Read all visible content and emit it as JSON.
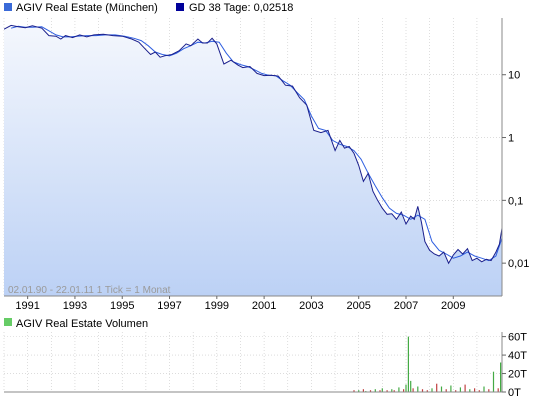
{
  "colors": {
    "background": "#ffffff",
    "price_line": "#1a1f8c",
    "average_line": "#2f5fe0",
    "area_top": "#f4f7fd",
    "area_bottom": "#bcd1f5",
    "volume_bar_green": "#44aa44",
    "volume_bar_red": "#c04040",
    "legend_price_swatch": "#3a6ad8",
    "legend_average_swatch": "#00009a",
    "legend_volume_swatch": "#66cc66",
    "grid": "#c8c8c8",
    "axis_text": "#000000",
    "watermark_text": "#9a9a9a"
  },
  "legend": {
    "price_series": "AGIV Real Estate (München)",
    "average_series": "GD 38 Tage: 0,02518",
    "volume_series": "AGIV Real Estate Volumen"
  },
  "watermark": "02.01.90 - 22.01.11    1 Tick = 1 Monat",
  "chart_data": [
    {
      "type": "line",
      "y_scale": "log",
      "ylim": [
        0.003,
        80
      ],
      "xlim": [
        1990.0,
        2011.06
      ],
      "y_ticks": [
        {
          "value": 10,
          "label": "10"
        },
        {
          "value": 1,
          "label": "1"
        },
        {
          "value": 0.1,
          "label": "0,1"
        },
        {
          "value": 0.01,
          "label": "0,01"
        }
      ],
      "x_ticks": [
        {
          "value": 1991,
          "label": "1991"
        },
        {
          "value": 1993,
          "label": "1993"
        },
        {
          "value": 1995,
          "label": "1995"
        },
        {
          "value": 1997,
          "label": "1997"
        },
        {
          "value": 1999,
          "label": "1999"
        },
        {
          "value": 2001,
          "label": "2001"
        },
        {
          "value": 2003,
          "label": "2003"
        },
        {
          "value": 2005,
          "label": "2005"
        },
        {
          "value": 2007,
          "label": "2007"
        },
        {
          "value": 2009,
          "label": "2009"
        }
      ],
      "minor_x_ticks": [
        1990,
        1992,
        1994,
        1996,
        1998,
        2000,
        2002,
        2004,
        2006,
        2008,
        2010
      ],
      "series": [
        {
          "name": "AGIV Real Estate (München)",
          "x": [
            1990.0,
            1990.3,
            1990.6,
            1990.9,
            1991.2,
            1991.6,
            1991.9,
            1992.2,
            1992.4,
            1992.6,
            1992.9,
            1993.2,
            1993.5,
            1993.8,
            1994.2,
            1994.6,
            1995.0,
            1995.4,
            1995.7,
            1996.0,
            1996.2,
            1996.4,
            1996.6,
            1996.8,
            1997.1,
            1997.4,
            1997.7,
            1997.9,
            1998.2,
            1998.4,
            1998.6,
            1998.8,
            1999.0,
            1999.3,
            1999.6,
            1999.9,
            2000.1,
            2000.4,
            2000.7,
            2001.0,
            2001.3,
            2001.6,
            2001.9,
            2002.2,
            2002.5,
            2002.8,
            2003.1,
            2003.4,
            2003.7,
            2004.0,
            2004.2,
            2004.4,
            2004.6,
            2004.8,
            2005.0,
            2005.2,
            2005.4,
            2005.6,
            2005.8,
            2006.0,
            2006.2,
            2006.4,
            2006.6,
            2006.8,
            2007.0,
            2007.2,
            2007.35,
            2007.5,
            2007.65,
            2007.8,
            2008.0,
            2008.2,
            2008.4,
            2008.6,
            2008.8,
            2009.0,
            2009.2,
            2009.4,
            2009.6,
            2009.8,
            2010.0,
            2010.2,
            2010.4,
            2010.6,
            2010.8,
            2010.95,
            2011.06
          ],
          "values": [
            53,
            61,
            58,
            56,
            60,
            55,
            42,
            41,
            37,
            42,
            39,
            43,
            40,
            43,
            44,
            42,
            41,
            37,
            33,
            25,
            21,
            23,
            19,
            20,
            21,
            24,
            31,
            29,
            37,
            32,
            32,
            38,
            31,
            14.8,
            17,
            14.2,
            13,
            13.5,
            10.5,
            9.7,
            9.8,
            9.5,
            6.8,
            6.6,
            4.3,
            3.3,
            1.3,
            1.2,
            1.3,
            0.62,
            0.9,
            0.68,
            0.72,
            0.56,
            0.36,
            0.2,
            0.27,
            0.14,
            0.1,
            0.075,
            0.06,
            0.061,
            0.05,
            0.065,
            0.042,
            0.056,
            0.05,
            0.08,
            0.045,
            0.022,
            0.016,
            0.014,
            0.013,
            0.015,
            0.01,
            0.0135,
            0.0165,
            0.014,
            0.017,
            0.011,
            0.012,
            0.0105,
            0.0115,
            0.011,
            0.015,
            0.02,
            0.036
          ]
        },
        {
          "name": "GD 38 Tage: 0,02518",
          "x": [
            1990.3,
            1990.6,
            1990.9,
            1991.2,
            1991.6,
            1991.9,
            1992.2,
            1992.5,
            1992.8,
            1993.1,
            1993.5,
            1993.9,
            1994.3,
            1994.7,
            1995.1,
            1995.5,
            1995.8,
            1996.1,
            1996.4,
            1996.7,
            1997.0,
            1997.3,
            1997.6,
            1997.9,
            1998.2,
            1998.5,
            1998.8,
            1999.1,
            1999.4,
            1999.7,
            2000.0,
            2000.3,
            2000.6,
            2000.9,
            2001.2,
            2001.5,
            2001.8,
            2002.1,
            2002.4,
            2002.7,
            2003.0,
            2003.3,
            2003.6,
            2003.9,
            2004.2,
            2004.5,
            2004.8,
            2005.1,
            2005.4,
            2005.7,
            2006.0,
            2006.3,
            2006.6,
            2006.9,
            2007.2,
            2007.5,
            2007.8,
            2008.1,
            2008.4,
            2008.7,
            2009.0,
            2009.3,
            2009.6,
            2009.9,
            2010.2,
            2010.5,
            2010.8,
            2011.06
          ],
          "values": [
            55,
            59,
            57,
            57,
            58,
            50,
            43,
            40,
            40,
            41,
            42,
            42,
            43,
            43,
            41,
            38,
            35,
            29,
            23,
            21,
            20,
            22,
            26,
            29,
            33,
            32,
            34,
            33,
            22,
            16,
            14.5,
            13.5,
            12,
            10.5,
            9.8,
            9.6,
            8,
            6.8,
            5.2,
            4,
            2.2,
            1.4,
            1.3,
            0.9,
            0.78,
            0.72,
            0.62,
            0.45,
            0.27,
            0.17,
            0.11,
            0.075,
            0.062,
            0.058,
            0.05,
            0.058,
            0.05,
            0.022,
            0.016,
            0.014,
            0.012,
            0.013,
            0.015,
            0.013,
            0.012,
            0.011,
            0.013,
            0.025
          ]
        }
      ]
    },
    {
      "type": "bar",
      "ylim": [
        0,
        65
      ],
      "y_ticks": [
        {
          "value": 0,
          "label": "0T"
        },
        {
          "value": 20,
          "label": "20T"
        },
        {
          "value": 40,
          "label": "40T"
        },
        {
          "value": 60,
          "label": "60T"
        }
      ],
      "series": [
        {
          "name": "AGIV Real Estate Volumen",
          "x": [
            2004.8,
            2005.0,
            2005.2,
            2005.3,
            2005.5,
            2005.7,
            2005.9,
            2006.0,
            2006.2,
            2006.4,
            2006.5,
            2006.7,
            2006.9,
            2007.0,
            2007.1,
            2007.2,
            2007.3,
            2007.5,
            2007.7,
            2007.9,
            2008.1,
            2008.3,
            2008.5,
            2008.7,
            2008.9,
            2009.1,
            2009.3,
            2009.5,
            2009.7,
            2009.9,
            2010.1,
            2010.3,
            2010.5,
            2010.7,
            2010.9,
            2011.0
          ],
          "values": [
            2,
            2,
            3,
            1,
            2,
            3,
            2,
            4,
            2,
            3,
            2,
            5,
            3,
            8,
            60,
            12,
            4,
            6,
            3,
            2,
            4,
            9,
            6,
            3,
            7,
            2,
            5,
            8,
            3,
            4,
            2,
            6,
            3,
            22,
            4,
            32
          ],
          "direction": [
            "down",
            "up",
            "down",
            "up",
            "down",
            "up",
            "down",
            "up",
            "down",
            "up",
            "down",
            "up",
            "down",
            "up",
            "up",
            "up",
            "down",
            "up",
            "down",
            "down",
            "up",
            "down",
            "up",
            "down",
            "up",
            "down",
            "up",
            "down",
            "up",
            "down",
            "down",
            "up",
            "down",
            "up",
            "down",
            "up"
          ]
        }
      ]
    }
  ]
}
